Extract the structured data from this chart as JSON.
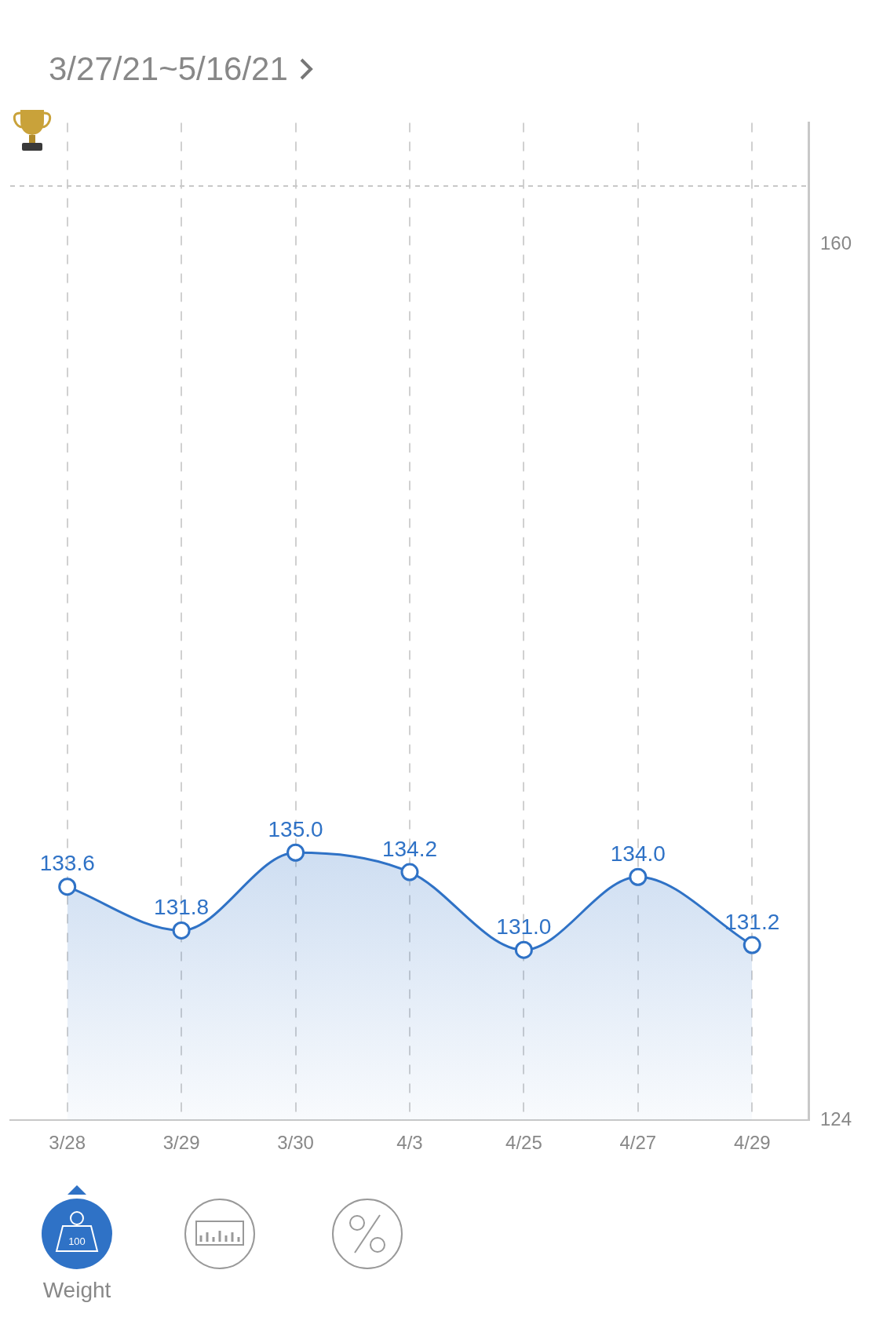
{
  "chart_data": {
    "type": "area",
    "title": "3/27/21~5/16/21",
    "categories": [
      "3/28",
      "3/29",
      "3/30",
      "4/3",
      "4/25",
      "4/27",
      "4/29"
    ],
    "series": [
      {
        "color": "#2f72c6",
        "values": [
          133.6,
          131.8,
          135.0,
          134.2,
          131.0,
          134.0,
          131.2
        ],
        "value_labels": [
          "133.6",
          "131.8",
          "135.0",
          "134.2",
          "131.0",
          "134.0",
          "131.2"
        ]
      }
    ],
    "ylim": [
      124,
      165
    ],
    "yticks": [
      124,
      160
    ],
    "grid": "x",
    "legend": false,
    "marker": "circle",
    "ref_lines": [
      {
        "axis": "y",
        "value": 162.4,
        "color": "#c8c8c8",
        "line_style": "dashed"
      }
    ],
    "annotations": [
      "Weight",
      "100"
    ]
  }
}
